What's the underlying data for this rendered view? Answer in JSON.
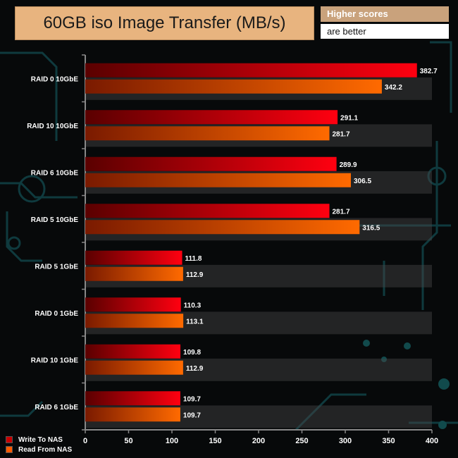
{
  "title": "60GB iso Image Transfer (MB/s)",
  "note": {
    "line1": "Higher scores",
    "line2": "are better"
  },
  "chart_data": {
    "type": "bar",
    "orientation": "horizontal",
    "categories": [
      "RAID 0 10GbE",
      "RAID 10 10GbE",
      "RAID 6 10GbE",
      "RAID 5 10GbE",
      "RAID 5 1GbE",
      "RAID 0 1GbE",
      "RAID 10 1GbE",
      "RAID 6 1GbE"
    ],
    "series": [
      {
        "name": "Write To NAS",
        "color": "#e8000a",
        "values": [
          382.7,
          291.1,
          289.9,
          281.7,
          111.8,
          110.3,
          109.8,
          109.7
        ]
      },
      {
        "name": "Read From NAS",
        "color": "#ff5a00",
        "values": [
          342.2,
          281.7,
          306.5,
          316.5,
          112.9,
          113.1,
          112.9,
          109.7
        ]
      }
    ],
    "xlim": [
      0,
      400
    ],
    "xticks": [
      0,
      50,
      100,
      150,
      200,
      250,
      300,
      350,
      400
    ],
    "legend_position": "bottom-left",
    "grid": false
  }
}
